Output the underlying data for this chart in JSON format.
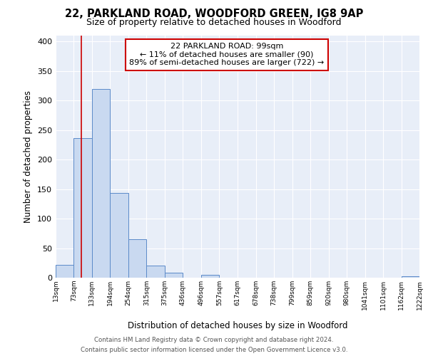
{
  "title": "22, PARKLAND ROAD, WOODFORD GREEN, IG8 9AP",
  "subtitle": "Size of property relative to detached houses in Woodford",
  "xlabel": "Distribution of detached houses by size in Woodford",
  "ylabel": "Number of detached properties",
  "bin_edges": [
    13,
    73,
    133,
    194,
    254,
    315,
    375,
    436,
    496,
    557,
    617,
    678,
    738,
    799,
    859,
    920,
    980,
    1041,
    1101,
    1162,
    1222
  ],
  "bin_labels": [
    "13sqm",
    "73sqm",
    "133sqm",
    "194sqm",
    "254sqm",
    "315sqm",
    "375sqm",
    "436sqm",
    "496sqm",
    "557sqm",
    "617sqm",
    "678sqm",
    "738sqm",
    "799sqm",
    "859sqm",
    "920sqm",
    "980sqm",
    "1041sqm",
    "1101sqm",
    "1162sqm",
    "1222sqm"
  ],
  "bar_heights": [
    22,
    236,
    320,
    144,
    65,
    21,
    8,
    0,
    5,
    0,
    0,
    0,
    0,
    0,
    0,
    0,
    0,
    0,
    0,
    2
  ],
  "bar_color": "#c9d9f0",
  "bar_edge_color": "#5b8ac9",
  "property_value": 99,
  "red_line_color": "#cc0000",
  "ylim": [
    0,
    410
  ],
  "yticks": [
    0,
    50,
    100,
    150,
    200,
    250,
    300,
    350,
    400
  ],
  "annotation_box_text": "22 PARKLAND ROAD: 99sqm\n← 11% of detached houses are smaller (90)\n89% of semi-detached houses are larger (722) →",
  "bar_color_highlight": "#c9d9f0",
  "plot_bg_color": "#e8eef8",
  "footer_line1": "Contains HM Land Registry data © Crown copyright and database right 2024.",
  "footer_line2": "Contains public sector information licensed under the Open Government Licence v3.0.",
  "title_fontsize": 10.5,
  "subtitle_fontsize": 9
}
